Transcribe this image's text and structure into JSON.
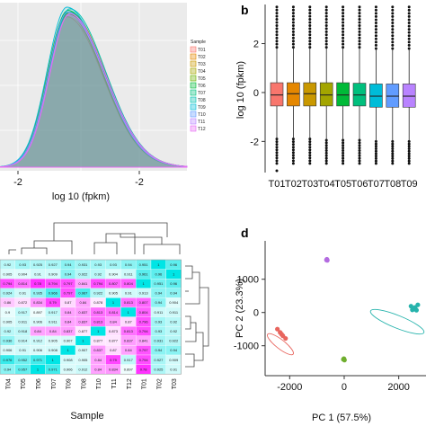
{
  "panels": {
    "b": "b",
    "d": "d"
  },
  "chart_data": [
    {
      "id": "a",
      "type": "area",
      "xlabel": "log 10 (fpkm)",
      "x_ticks": [
        "-2",
        "-2"
      ],
      "legend_title": "Sample",
      "legend_position": "right",
      "series": [
        {
          "name": "T01",
          "color": "#f8766d",
          "peak": 0.94
        },
        {
          "name": "T02",
          "color": "#e58700",
          "peak": 0.96
        },
        {
          "name": "T03",
          "color": "#c99800",
          "peak": 0.95
        },
        {
          "name": "T04",
          "color": "#a3a500",
          "peak": 0.97
        },
        {
          "name": "T05",
          "color": "#6bb100",
          "peak": 0.96
        },
        {
          "name": "T06",
          "color": "#00ba38",
          "peak": 0.98
        },
        {
          "name": "T07",
          "color": "#00bf7d",
          "peak": 0.97
        },
        {
          "name": "T08",
          "color": "#00c0af",
          "peak": 0.99
        },
        {
          "name": "T09",
          "color": "#00bcd8",
          "peak": 1.0
        },
        {
          "name": "T10",
          "color": "#619cff",
          "peak": 0.97
        },
        {
          "name": "T11",
          "color": "#b983ff",
          "peak": 0.95
        },
        {
          "name": "T12",
          "color": "#e76bf3",
          "peak": 0.96
        }
      ]
    },
    {
      "id": "b",
      "type": "box",
      "ylabel": "log 10 (fpkm)",
      "ylim": [
        -3.2,
        3.6
      ],
      "y_ticks": [
        2,
        0,
        -2
      ],
      "y_tick_labels": [
        "2",
        "0",
        "-2"
      ],
      "categories": [
        "T01",
        "T02",
        "T03",
        "T04",
        "T05",
        "T06",
        "T07",
        "T08",
        "T09"
      ],
      "colors": [
        "#f8766d",
        "#e58700",
        "#c99800",
        "#a3a500",
        "#00ba38",
        "#00bf7d",
        "#00bcd8",
        "#619cff",
        "#b983ff"
      ],
      "boxes": [
        {
          "q1": -0.55,
          "median": -0.1,
          "q3": 0.4,
          "whisker_low": -1.9,
          "whisker_high": 1.85
        },
        {
          "q1": -0.55,
          "median": -0.05,
          "q3": 0.4,
          "whisker_low": -1.9,
          "whisker_high": 1.85
        },
        {
          "q1": -0.55,
          "median": -0.05,
          "q3": 0.4,
          "whisker_low": -1.9,
          "whisker_high": 1.85
        },
        {
          "q1": -0.55,
          "median": -0.1,
          "q3": 0.4,
          "whisker_low": -1.95,
          "whisker_high": 1.85
        },
        {
          "q1": -0.55,
          "median": -0.1,
          "q3": 0.4,
          "whisker_low": -1.95,
          "whisker_high": 1.85
        },
        {
          "q1": -0.55,
          "median": -0.1,
          "q3": 0.38,
          "whisker_low": -1.95,
          "whisker_high": 1.85
        },
        {
          "q1": -0.6,
          "median": -0.15,
          "q3": 0.35,
          "whisker_low": -2.0,
          "whisker_high": 1.8
        },
        {
          "q1": -0.6,
          "median": -0.15,
          "q3": 0.35,
          "whisker_low": -2.0,
          "whisker_high": 1.8
        },
        {
          "q1": -0.6,
          "median": -0.15,
          "q3": 0.35,
          "whisker_low": -2.0,
          "whisker_high": 1.8
        }
      ],
      "outlier_low": -3.2,
      "outlier_high": 3.5
    },
    {
      "id": "c",
      "type": "heatmap",
      "xlabel": "Sample",
      "col_labels": [
        "T04",
        "T05",
        "T06",
        "T07",
        "T09",
        "T08",
        "T10",
        "T11",
        "T12",
        "T01",
        "T02",
        "T03"
      ],
      "cells": [
        [
          "0.92",
          "0.93",
          "0.925",
          "0.927",
          "0.94",
          "0.931",
          "0.93",
          "0.93",
          "0.94",
          "0.951",
          "1",
          "0.96"
        ],
        [
          "0.905",
          "0.904",
          "0.91",
          "0.909",
          "0.94",
          "0.922",
          "0.92",
          "0.904",
          "0.911",
          "0.961",
          "0.96",
          "1"
        ],
        [
          "0.794",
          "0.814",
          "0.78",
          "0.794",
          "0.797",
          "0.841",
          "0.794",
          "0.807",
          "0.804",
          "1",
          "0.951",
          "0.96"
        ],
        [
          "0.924",
          "0.91",
          "0.935",
          "0.966",
          "0.797",
          "0.967",
          "0.922",
          "0.905",
          "0.91",
          "0.913",
          "0.94",
          "0.94"
        ],
        [
          "0.86",
          "0.872",
          "0.834",
          "0.79",
          "0.87",
          "0.84",
          "0.878",
          "1",
          "0.813",
          "0.807",
          "0.94",
          "0.904"
        ],
        [
          "0.9",
          "0.917",
          "0.897",
          "0.917",
          "0.84",
          "0.837",
          "0.813",
          "0.814",
          "1",
          "0.804",
          "0.911",
          "0.911"
        ],
        [
          "0.905",
          "0.911",
          "0.906",
          "0.911",
          "0.84",
          "0.837",
          "0.813",
          "0.84",
          "0.87",
          "0.796",
          "0.93",
          "0.92"
        ],
        [
          "0.92",
          "0.918",
          "0.84",
          "0.84",
          "0.837",
          "0.877",
          "1",
          "0.873",
          "0.813",
          "0.794",
          "0.93",
          "0.92"
        ],
        [
          "0.936",
          "0.914",
          "0.912",
          "0.905",
          "0.907",
          "1",
          "0.877",
          "0.877",
          "0.837",
          "0.841",
          "0.931",
          "0.922"
        ],
        [
          "0.906",
          "0.91",
          "0.906",
          "0.908",
          "1",
          "0.907",
          "0.837",
          "0.87",
          "0.84",
          "0.797",
          "0.94",
          "0.94"
        ],
        [
          "0.976",
          "0.952",
          "0.971",
          "1",
          "0.908",
          "0.905",
          "0.84",
          "0.79",
          "0.917",
          "0.794",
          "0.927",
          "0.909"
        ],
        [
          "0.94",
          "0.957",
          "1",
          "0.971",
          "0.906",
          "0.912",
          "0.84",
          "0.834",
          "0.897",
          "0.78",
          "0.925",
          "0.91"
        ]
      ],
      "color_low": "#ff33ff",
      "color_mid": "#ffffff",
      "color_high": "#00e5e5"
    },
    {
      "id": "d",
      "type": "scatter",
      "xlabel": "PC 1 (57.5%)",
      "ylabel": "PC 2 (23.3%)",
      "xlim": [
        -2900,
        3000
      ],
      "ylim": [
        -1900,
        2100
      ],
      "x_ticks": [
        -2000,
        0,
        2000
      ],
      "x_tick_labels": [
        "-2000",
        "0",
        "2000"
      ],
      "y_ticks": [
        1000,
        0,
        -1000
      ],
      "y_tick_labels": [
        "1000",
        "0",
        "-1000"
      ],
      "groups": [
        {
          "color": "#b36be0",
          "points": [
            [
              -650,
              1580
            ],
            [
              -620,
              1570
            ],
            [
              -635,
              1600
            ]
          ]
        },
        {
          "color": "#e8655e",
          "points": [
            [
              -2450,
              -500
            ],
            [
              -2350,
              -600
            ],
            [
              -2250,
              -700
            ],
            [
              -2150,
              -780
            ],
            [
              -2300,
              -650
            ]
          ]
        },
        {
          "color": "#6fae2e",
          "points": [
            [
              -30,
              -1410
            ],
            [
              10,
              -1430
            ],
            [
              -10,
              -1390
            ]
          ]
        },
        {
          "color": "#26b3ac",
          "points": [
            [
              2450,
              190
            ],
            [
              2600,
              150
            ],
            [
              2700,
              230
            ],
            [
              2500,
              80
            ],
            [
              2650,
              70
            ]
          ]
        }
      ]
    }
  ]
}
